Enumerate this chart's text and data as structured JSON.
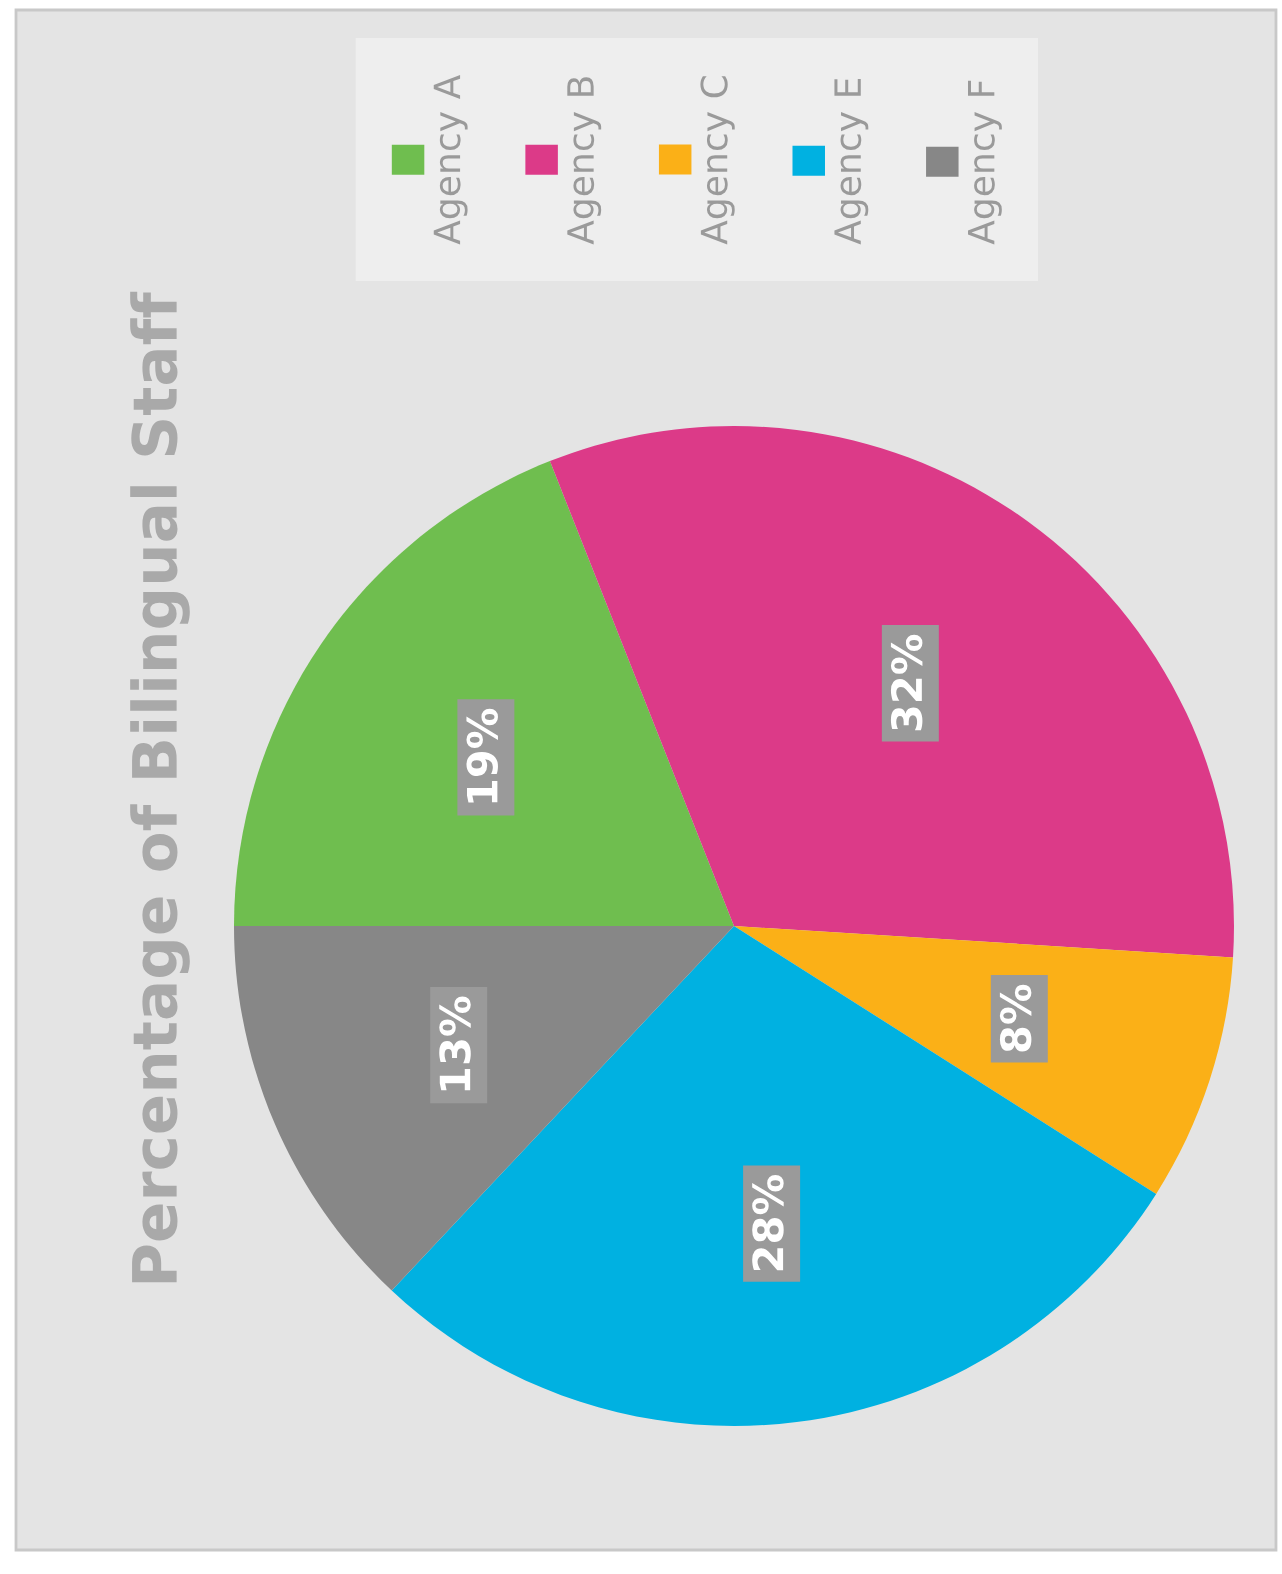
{
  "chart_data": {
    "type": "pie",
    "title": "Percentage of Bilingual Staff",
    "categories": [
      "Agency A",
      "Agency B",
      "Agency C",
      "Agency E",
      "Agency F"
    ],
    "values": [
      19,
      32,
      8,
      28,
      13
    ],
    "value_labels": [
      "19%",
      "32%",
      "8%",
      "28%",
      "13%"
    ],
    "colors": [
      "#6fbe4f",
      "#dc3a88",
      "#fbb017",
      "#00b1e1",
      "#878787"
    ],
    "legend": "top"
  }
}
